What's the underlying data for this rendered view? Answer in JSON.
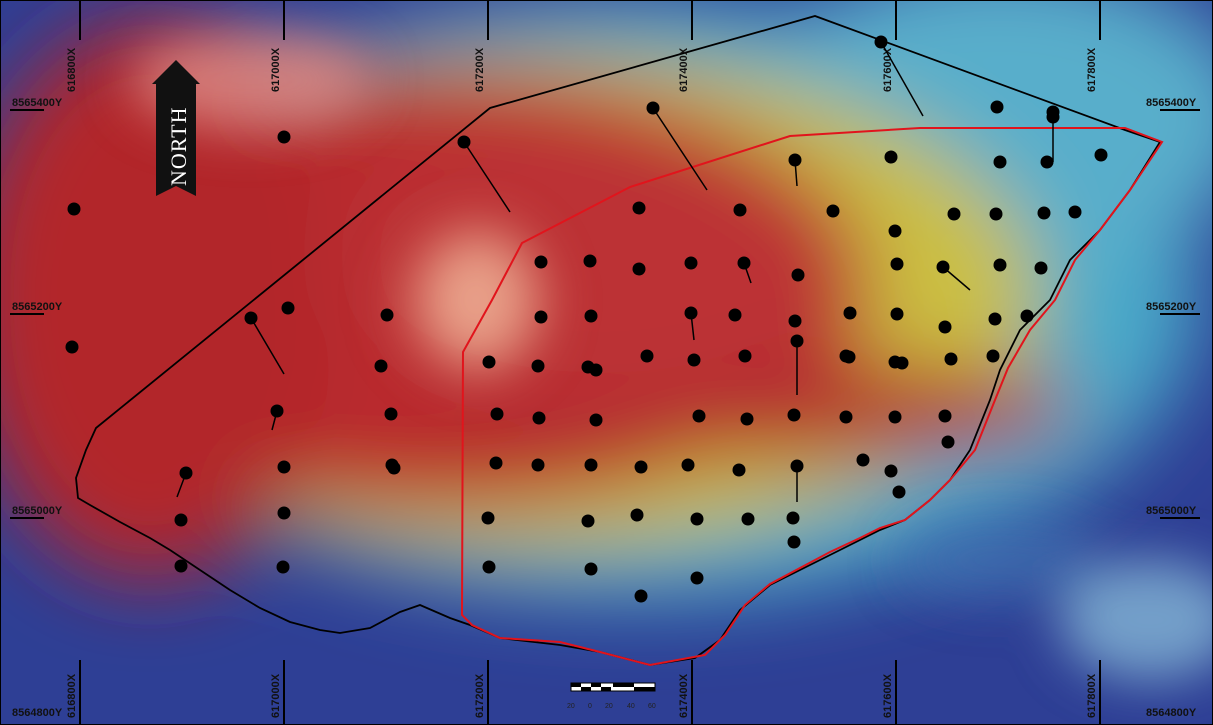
{
  "north_label": "NORTH",
  "easting_labels": [
    "616800X",
    "617000X",
    "617200X",
    "617400X",
    "617600X",
    "617800X"
  ],
  "northing_labels": [
    "8565400Y",
    "8565200Y",
    "8565000Y",
    "8564800Y"
  ],
  "scale_bar_labels": [
    "20",
    "0",
    "20",
    "40",
    "60"
  ],
  "colors": {
    "hot": "#b7272c",
    "warm": "#d9b23a",
    "mid": "#3fb4b0",
    "cold": "#2d3f96",
    "outer_boundary": "#000000",
    "inner_boundary": "#e1141c",
    "drillhole": "#000000"
  },
  "legend_icons": [
    "north-arrow-icon",
    "scale-bar-icon"
  ]
}
